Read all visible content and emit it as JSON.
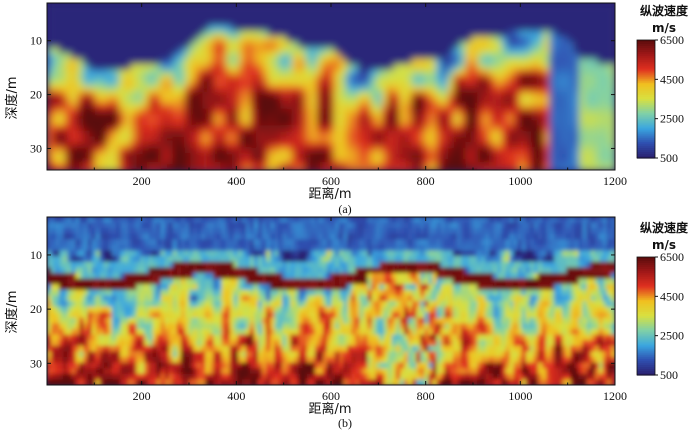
{
  "chart_data": [
    {
      "type": "heatmap",
      "caption": "(a)",
      "xlabel": "距离/m",
      "ylabel": "深度/m",
      "xlim": [
        0,
        1200
      ],
      "ylim": [
        34,
        3
      ],
      "xticks": [
        "200",
        "400",
        "600",
        "800",
        "1000",
        "1200"
      ],
      "yticks": [
        "10",
        "20",
        "30"
      ],
      "colorbar": {
        "title": "纵波速度",
        "unit": "m/s",
        "ticks": [
          "6500",
          "4500",
          "2500",
          "500"
        ],
        "range": [
          500,
          6500
        ],
        "colors": [
          "#2a1f6e",
          "#2f4fb0",
          "#3aa6e0",
          "#7fd0a8",
          "#d8e040",
          "#f0c020",
          "#e03020",
          "#a01818",
          "#5a0c0c"
        ]
      }
    },
    {
      "type": "heatmap",
      "caption": "(b)",
      "xlabel": "距离/m",
      "ylabel": "深度/m",
      "xlim": [
        0,
        1200
      ],
      "ylim": [
        34,
        3
      ],
      "xticks": [
        "200",
        "400",
        "600",
        "800",
        "1000",
        "1200"
      ],
      "yticks": [
        "10",
        "20",
        "30"
      ],
      "colorbar": {
        "title": "纵波速度",
        "unit": "m/s",
        "ticks": [
          "6500",
          "4500",
          "2500",
          "500"
        ],
        "range": [
          500,
          6500
        ],
        "colors": [
          "#2a1f6e",
          "#2f4fb0",
          "#3aa6e0",
          "#7fd0a8",
          "#d8e040",
          "#f0c020",
          "#e03020",
          "#a01818",
          "#5a0c0c"
        ]
      }
    }
  ]
}
